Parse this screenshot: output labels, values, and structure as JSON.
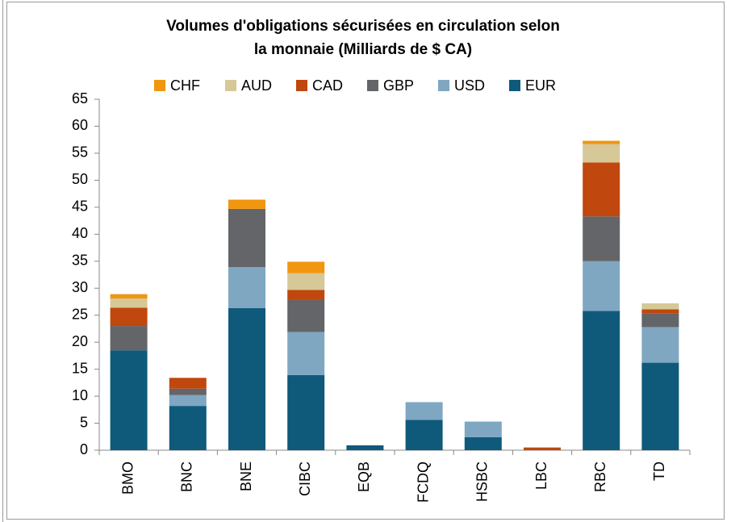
{
  "chart_data": {
    "type": "bar",
    "stacked": true,
    "title": [
      "Volumes d'obligations sécurisées en circulation selon",
      "la monnaie (Milliards de $ CA)"
    ],
    "categories": [
      "BMO",
      "BNC",
      "BNE",
      "CIBC",
      "EQB",
      "FCDQ",
      "HSBC",
      "LBC",
      "RBC",
      "TD"
    ],
    "series": [
      {
        "name": "EUR",
        "color": "#0f5a7a",
        "values": [
          18.5,
          8.2,
          26.3,
          13.9,
          0.9,
          5.6,
          2.4,
          0,
          25.8,
          16.2
        ]
      },
      {
        "name": "USD",
        "color": "#7fa7c2",
        "values": [
          0,
          2.0,
          7.6,
          8.0,
          0,
          3.3,
          2.9,
          0,
          9.2,
          6.6
        ]
      },
      {
        "name": "GBP",
        "color": "#636569",
        "values": [
          4.5,
          1.2,
          10.8,
          5.9,
          0,
          0,
          0,
          0,
          8.3,
          2.5
        ]
      },
      {
        "name": "CAD",
        "color": "#c0470e",
        "values": [
          3.4,
          2.0,
          0,
          1.9,
          0,
          0,
          0,
          0.5,
          10.0,
          0.8
        ]
      },
      {
        "name": "AUD",
        "color": "#d6c897",
        "values": [
          1.7,
          0,
          0,
          3.1,
          0,
          0,
          0,
          0,
          3.4,
          1.1
        ]
      },
      {
        "name": "CHF",
        "color": "#f0960f",
        "values": [
          0.8,
          0,
          1.7,
          2.1,
          0,
          0,
          0,
          0,
          0.6,
          0
        ]
      }
    ],
    "ylim": [
      0,
      65
    ],
    "yticks": [
      0,
      5,
      10,
      15,
      20,
      25,
      30,
      35,
      40,
      45,
      50,
      55,
      60,
      65
    ],
    "grid": false,
    "legend": "top"
  }
}
